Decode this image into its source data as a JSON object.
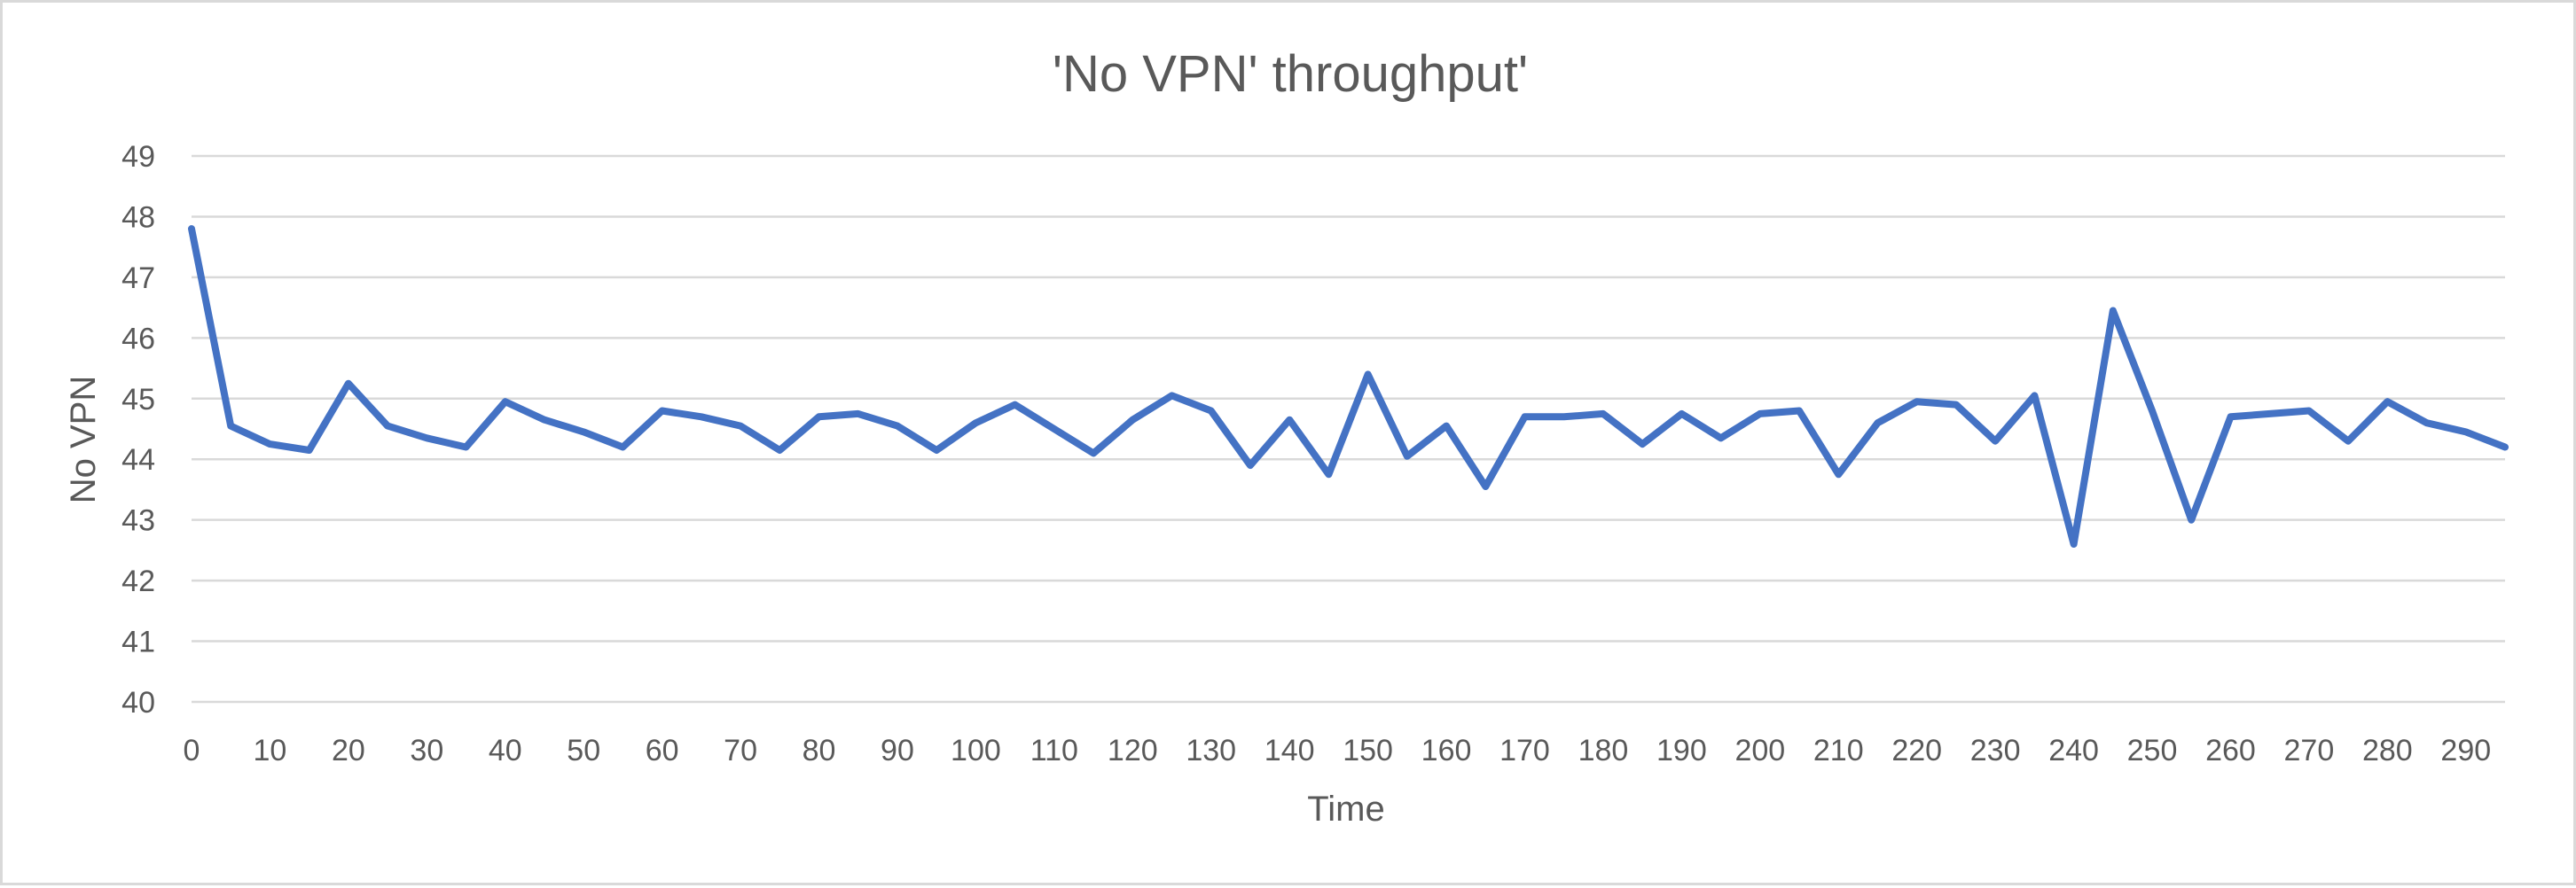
{
  "chart_data": {
    "type": "line",
    "title": "'No VPN' throughput'",
    "xlabel": "Time",
    "ylabel": "No VPN",
    "ylim": [
      40,
      49
    ],
    "yticks": [
      40,
      41,
      42,
      43,
      44,
      45,
      46,
      47,
      48,
      49
    ],
    "xticks": [
      0,
      10,
      20,
      30,
      40,
      50,
      60,
      70,
      80,
      90,
      100,
      110,
      120,
      130,
      140,
      150,
      160,
      170,
      180,
      190,
      200,
      210,
      220,
      230,
      240,
      250,
      260,
      270,
      280,
      290
    ],
    "xlim": [
      0,
      295
    ],
    "grid": "horizontal",
    "legend": "none",
    "series_color": "#4472c4",
    "x": [
      0,
      5,
      10,
      15,
      20,
      25,
      30,
      35,
      40,
      45,
      50,
      55,
      60,
      65,
      70,
      75,
      80,
      85,
      90,
      95,
      100,
      105,
      110,
      115,
      120,
      125,
      130,
      135,
      140,
      145,
      150,
      155,
      160,
      165,
      170,
      175,
      180,
      185,
      190,
      195,
      200,
      205,
      210,
      215,
      220,
      225,
      230,
      235,
      240,
      245,
      250,
      255,
      260,
      265,
      270,
      275,
      280,
      285,
      290,
      295
    ],
    "series": [
      {
        "values": [
          47.8,
          44.55,
          44.25,
          44.15,
          45.25,
          44.55,
          44.35,
          44.2,
          44.95,
          44.65,
          44.45,
          44.2,
          44.8,
          44.7,
          44.55,
          44.15,
          44.7,
          44.75,
          44.55,
          44.15,
          44.6,
          44.9,
          44.5,
          44.1,
          44.65,
          45.05,
          44.8,
          43.9,
          44.65,
          43.75,
          45.4,
          44.05,
          44.55,
          43.55,
          44.7,
          44.7,
          44.75,
          44.25,
          44.75,
          44.35,
          44.75,
          44.8,
          43.75,
          44.6,
          44.95,
          44.9,
          44.3,
          45.05,
          42.6,
          46.45,
          44.8,
          43.0,
          44.7,
          44.75,
          44.8,
          44.3,
          44.95,
          44.6,
          44.45,
          44.2
        ]
      }
    ]
  }
}
